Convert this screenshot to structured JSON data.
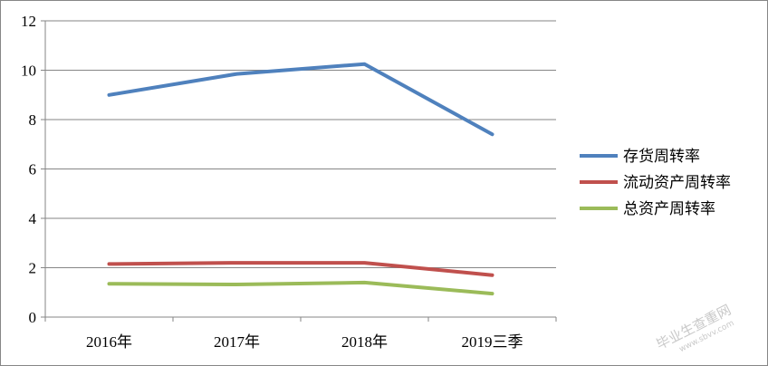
{
  "chart_data": {
    "type": "line",
    "categories": [
      "2016年",
      "2017年",
      "2018年",
      "2019三季"
    ],
    "series": [
      {
        "name": "存货周转率",
        "values": [
          9.0,
          9.85,
          10.25,
          7.4
        ],
        "color": "#4F81BD"
      },
      {
        "name": "流动资产周转率",
        "values": [
          2.15,
          2.2,
          2.2,
          1.7
        ],
        "color": "#C0504D"
      },
      {
        "name": "总资产周转率",
        "values": [
          1.35,
          1.32,
          1.4,
          0.95
        ],
        "color": "#9BBB59"
      }
    ],
    "y_ticks": [
      "0",
      "2",
      "4",
      "6",
      "8",
      "10",
      "12"
    ],
    "ylim": [
      0,
      12
    ],
    "grid": true,
    "legend": "right"
  },
  "watermark": {
    "text": "毕业生查重网",
    "url": "www.sbvv.com"
  }
}
